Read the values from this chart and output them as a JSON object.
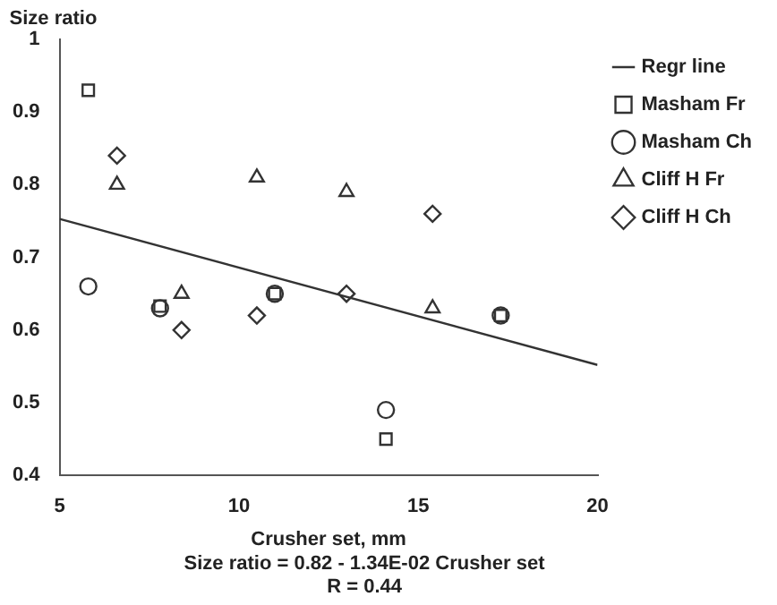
{
  "chart_data": {
    "type": "scatter",
    "ylabel": "Size ratio",
    "xlabel": "Crusher set, mm",
    "xlim": [
      5,
      20
    ],
    "xticks": [
      5,
      10,
      15,
      20
    ],
    "ylim": [
      0.4,
      1
    ],
    "yticks": [
      0.4,
      0.5,
      0.6,
      0.7,
      0.8,
      0.9,
      {
        "value": 1,
        "label": "1"
      }
    ],
    "legend": "right",
    "grid": false,
    "series": [
      {
        "name": "Regr line",
        "type": "line",
        "color": "#333333",
        "marker": "none",
        "x": [
          5,
          20
        ],
        "values": [
          0.753,
          0.552
        ]
      },
      {
        "name": "Masham Fr",
        "color": "#333333",
        "marker": "square",
        "x": [
          5.8,
          7.8,
          11.0,
          14.1,
          17.3
        ],
        "values": [
          0.93,
          0.633,
          0.65,
          0.45,
          0.62
        ]
      },
      {
        "name": "Masham Ch",
        "color": "#333333",
        "marker": "circle",
        "x": [
          5.8,
          7.8,
          11.0,
          14.1,
          17.3
        ],
        "values": [
          0.66,
          0.63,
          0.65,
          0.49,
          0.62
        ]
      },
      {
        "name": "Cliff H Fr",
        "color": "#333333",
        "marker": "triangle",
        "x": [
          6.6,
          8.4,
          10.5,
          13.0,
          15.4
        ],
        "values": [
          0.8,
          0.65,
          0.81,
          0.79,
          0.63
        ]
      },
      {
        "name": "Cliff H Ch",
        "color": "#333333",
        "marker": "diamond",
        "x": [
          6.6,
          8.4,
          10.5,
          13.0,
          15.4
        ],
        "values": [
          0.84,
          0.6,
          0.62,
          0.65,
          0.76
        ]
      }
    ],
    "annotations": [
      "Size ratio = 0.82 - 1.34E-02 Crusher set",
      "R = 0.44"
    ]
  }
}
